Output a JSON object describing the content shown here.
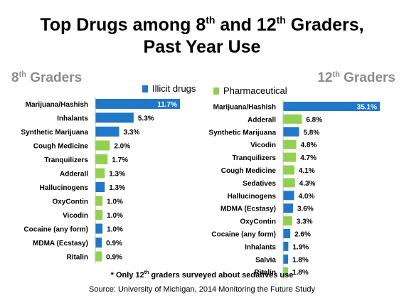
{
  "title": {
    "line1_a": "Top Drugs among  8",
    "sup_a": "th",
    "line1_b": " and 12",
    "sup_b": "th",
    "line1_c": " Graders,",
    "line2": "Past Year Use"
  },
  "legend": [
    {
      "label": "Illicit drugs",
      "color": "#1f78c8"
    },
    {
      "label": "Pharmaceutical",
      "color": "#92d050"
    }
  ],
  "colors": {
    "illicit": "#1f78c8",
    "pharmaceutical": "#92d050"
  },
  "footnote": {
    "pre": "* Only 12",
    "sup": "th",
    "post": " graders surveyed about sedatives use"
  },
  "source": "Source: University of Michigan, 2014 Monitoring the Future Study",
  "chart_data": [
    {
      "type": "bar",
      "orientation": "horizontal",
      "title": {
        "num": "8",
        "sup": "th",
        "rest": " Graders"
      },
      "value_suffix": "%",
      "categories": [
        "Marijuana/Hashish",
        "Inhalants",
        "Synthetic Marijuana",
        "Cough Medicine",
        "Tranquilizers",
        "Adderall",
        "Hallucinogens",
        "OxyContin",
        "Vicodin",
        "Cocaine (any form)",
        "MDMA (Ecstasy)",
        "Ritalin"
      ],
      "values": [
        11.7,
        5.3,
        3.3,
        2.0,
        1.7,
        1.3,
        1.3,
        1.0,
        1.0,
        1.0,
        0.9,
        0.9
      ],
      "value_labels": [
        "11.7%",
        "5.3%",
        "3.3%",
        "2.0%",
        "1.7%",
        "1.3%",
        "1.3%",
        "1.0%",
        "1.0%",
        "1.0%",
        "0.9%",
        "0.9%"
      ],
      "groups": [
        "illicit",
        "illicit",
        "illicit",
        "pharmaceutical",
        "pharmaceutical",
        "pharmaceutical",
        "illicit",
        "pharmaceutical",
        "pharmaceutical",
        "illicit",
        "illicit",
        "pharmaceutical"
      ],
      "xlim": [
        0,
        11.7
      ]
    },
    {
      "type": "bar",
      "orientation": "horizontal",
      "title": {
        "num": "12",
        "sup": "th",
        "rest": " Graders"
      },
      "value_suffix": "%",
      "categories": [
        "Marijuana/Hashish",
        "Adderall",
        "Synthetic Marijuana",
        "Vicodin",
        "Tranquilizers",
        "Cough Medicine",
        "Sedatives",
        "Hallucinogens",
        "MDMA (Ecstasy)",
        "OxyContin",
        "Cocaine (any form)",
        "Inhalants",
        "Salvia",
        "Ritalin"
      ],
      "values": [
        35.1,
        6.8,
        5.8,
        4.8,
        4.7,
        4.1,
        4.3,
        4.0,
        3.6,
        3.3,
        2.6,
        1.9,
        1.8,
        1.8
      ],
      "value_labels": [
        "35.1%",
        "6.8%",
        "5.8%",
        "4.8%",
        "4.7%",
        "4.1%",
        "4.3%",
        "4.0%",
        "3.6%",
        "3.3%",
        "2.6%",
        "1.9%",
        "1.8%",
        "1.8%"
      ],
      "groups": [
        "illicit",
        "pharmaceutical",
        "illicit",
        "pharmaceutical",
        "pharmaceutical",
        "pharmaceutical",
        "pharmaceutical",
        "illicit",
        "illicit",
        "pharmaceutical",
        "illicit",
        "illicit",
        "illicit",
        "pharmaceutical"
      ],
      "xlim": [
        0,
        35.1
      ]
    }
  ]
}
